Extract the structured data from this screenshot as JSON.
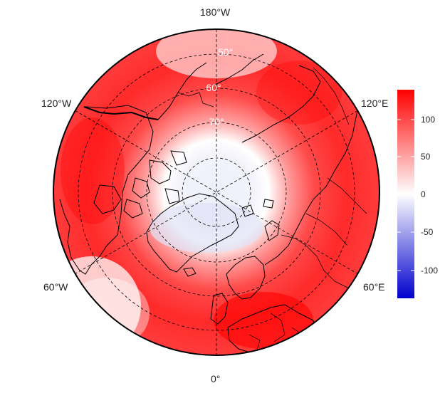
{
  "map": {
    "projection": "north-polar stereographic",
    "longitude_labels": {
      "top": "180°W",
      "left_upper": "120°W",
      "right_upper": "120°E",
      "left_lower": "60°W",
      "right_lower": "60°E",
      "bottom": "0°"
    },
    "latitude_labels": [
      "50°",
      "60°",
      "70°",
      "80°"
    ],
    "graticule_style": "dashed",
    "coastline_color": "#000000"
  },
  "colorbar": {
    "ticks": [
      "100",
      "50",
      "0",
      "-50",
      "-100"
    ],
    "tick_values": [
      100,
      50,
      0,
      -50,
      -100
    ],
    "range": [
      -135,
      135
    ],
    "colors": {
      "high": "#ff0000",
      "mid": "#ffffff",
      "low": "#0000cd"
    }
  }
}
